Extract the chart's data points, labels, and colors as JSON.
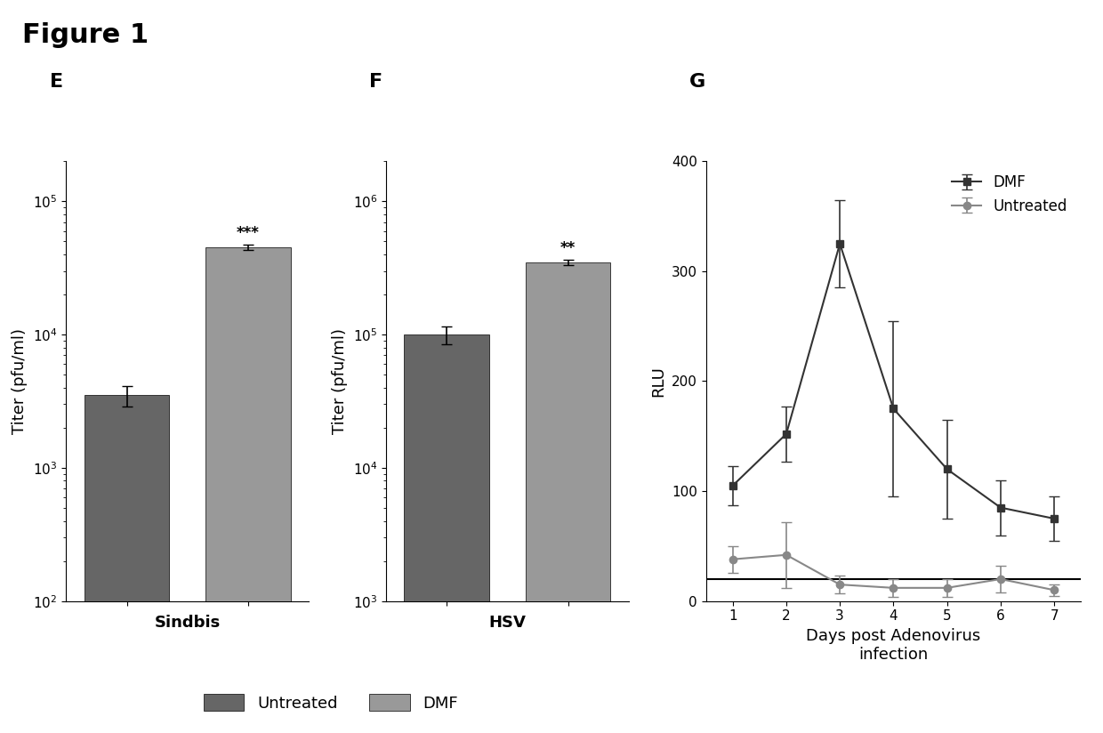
{
  "figure_title": "Figure 1",
  "panel_labels": [
    "E",
    "F",
    "G"
  ],
  "E_title": "Sindbis",
  "E_ylabel": "Titer (pfu/ml)",
  "E_ylim_log": [
    100,
    200000
  ],
  "E_yticks": [
    100,
    1000,
    10000,
    100000
  ],
  "E_bars": [
    3500,
    45000
  ],
  "E_errors": [
    600,
    2000
  ],
  "E_bar_colors": [
    "#666666",
    "#999999"
  ],
  "E_annotation": "***",
  "F_title": "HSV",
  "F_ylabel": "Titer (pfu/ml)",
  "F_ylim_log": [
    1000,
    2000000
  ],
  "F_yticks": [
    1000,
    10000,
    100000,
    1000000
  ],
  "F_bars": [
    100000,
    350000
  ],
  "F_errors": [
    15000,
    15000
  ],
  "F_bar_colors": [
    "#666666",
    "#999999"
  ],
  "F_annotation": "**",
  "G_xlabel": "Days post Adenovirus\ninfection",
  "G_ylabel": "RLU",
  "G_ylim": [
    0,
    400
  ],
  "G_yticks": [
    0,
    100,
    200,
    300,
    400
  ],
  "G_days": [
    1,
    2,
    3,
    4,
    5,
    6,
    7
  ],
  "G_DMF_values": [
    105,
    152,
    325,
    175,
    120,
    85,
    75
  ],
  "G_DMF_errors": [
    18,
    25,
    40,
    80,
    45,
    25,
    20
  ],
  "G_Untreated_values": [
    38,
    42,
    15,
    12,
    12,
    20,
    10
  ],
  "G_Untreated_errors": [
    12,
    30,
    8,
    8,
    8,
    12,
    5
  ],
  "G_hline": 20,
  "G_DMF_color": "#333333",
  "G_Untreated_color": "#888888",
  "legend_labels": [
    "Untreated",
    "DMF"
  ],
  "bar_colors_legend": [
    "#666666",
    "#999999"
  ],
  "background_color": "#ffffff",
  "title_fontsize": 22,
  "label_fontsize": 13,
  "tick_fontsize": 11,
  "panel_label_fontsize": 16
}
